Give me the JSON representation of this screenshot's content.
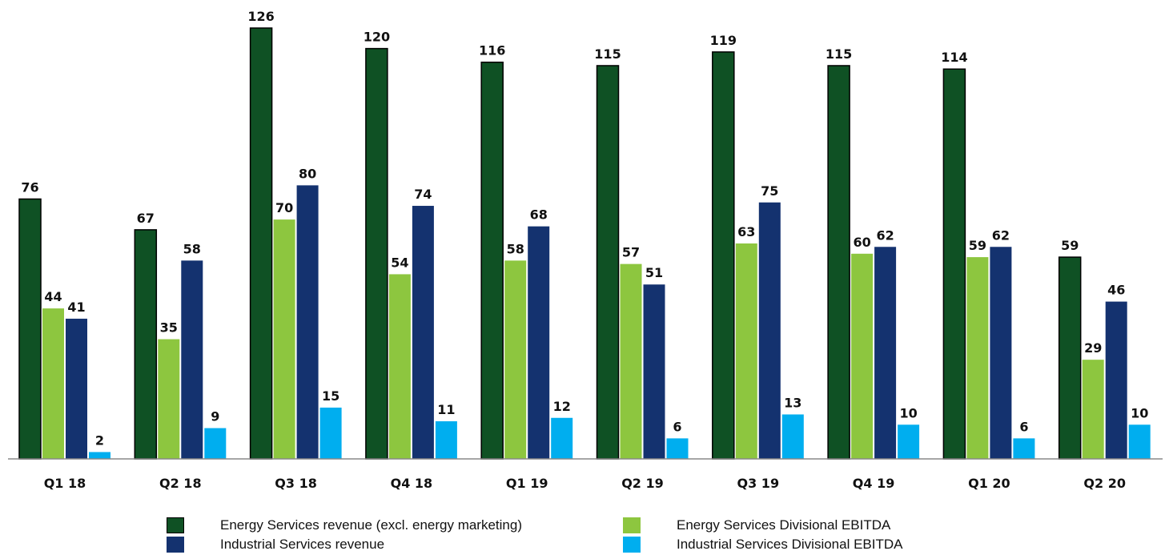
{
  "chart_data": {
    "type": "bar",
    "categories": [
      "Q1 18",
      "Q2 18",
      "Q3 18",
      "Q4 18",
      "Q1 19",
      "Q2 19",
      "Q3 19",
      "Q4 19",
      "Q1 20",
      "Q2 20"
    ],
    "series": [
      {
        "name": "Energy Services revenue (excl. energy marketing)",
        "color": "#0f5124",
        "values": [
          76,
          67,
          126,
          120,
          116,
          115,
          119,
          115,
          114,
          59
        ]
      },
      {
        "name": "Energy Services Divisional EBITDA",
        "color": "#8dc63f",
        "values": [
          44,
          35,
          70,
          54,
          58,
          57,
          63,
          60,
          59,
          29
        ]
      },
      {
        "name": "Industrial Services revenue",
        "color": "#14326f",
        "values": [
          41,
          58,
          80,
          74,
          68,
          51,
          75,
          62,
          62,
          46
        ]
      },
      {
        "name": "Industrial Services Divisional EBITDA",
        "color": "#00aeef",
        "values": [
          2,
          9,
          15,
          11,
          12,
          6,
          13,
          10,
          6,
          10
        ]
      }
    ],
    "title": "",
    "xlabel": "",
    "ylabel": "",
    "ylim": [
      0,
      126
    ],
    "grid": false,
    "legend_position": "bottom"
  }
}
